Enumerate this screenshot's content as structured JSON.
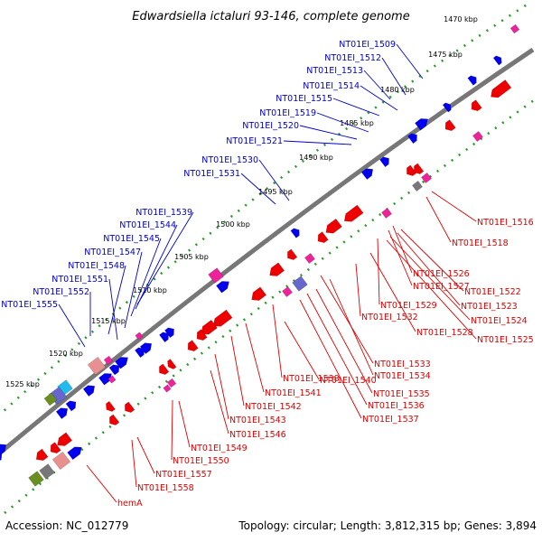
{
  "title": "Edwardsiella ictaluri 93-146, complete genome",
  "footer": {
    "accession": "Accession: NC_012779",
    "summary": "Topology: circular; Length: 3,812,315 bp; Genes: 3,894"
  },
  "colors": {
    "backbone": "#777777",
    "tick": "#2a9a2a",
    "forward": "#0000ee",
    "reverse": "#ee0000",
    "forward_label": "#0000cc",
    "reverse_label": "#dd0000",
    "rna": "#ee2299",
    "misc_a": "#777777",
    "misc_b": "#6666cc",
    "misc_c": "#e89090",
    "misc_d": "#6b8e23",
    "misc_e": "#22bbee"
  },
  "ticks": [
    {
      "label": "1470 kbp"
    },
    {
      "label": "1475 kbp"
    },
    {
      "label": "1480 kbp"
    },
    {
      "label": "1485 kbp"
    },
    {
      "label": "1490 kbp"
    },
    {
      "label": "1495 kbp"
    },
    {
      "label": "1500 kbp"
    },
    {
      "label": "1505 kbp"
    },
    {
      "label": "1510 kbp"
    },
    {
      "label": "1515 kbp"
    },
    {
      "label": "1520 kbp"
    },
    {
      "label": "1525 kbp"
    }
  ],
  "forward_genes": [
    {
      "label": "NT01EI_1509"
    },
    {
      "label": "NT01EI_1512"
    },
    {
      "label": "NT01EI_1513"
    },
    {
      "label": "NT01EI_1514"
    },
    {
      "label": "NT01EI_1515"
    },
    {
      "label": "NT01EI_1519"
    },
    {
      "label": "NT01EI_1520"
    },
    {
      "label": "NT01EI_1521"
    },
    {
      "label": "NT01EI_1530"
    },
    {
      "label": "NT01EI_1531"
    },
    {
      "label": "NT01EI_1539"
    },
    {
      "label": "NT01EI_1544"
    },
    {
      "label": "NT01EI_1545"
    },
    {
      "label": "NT01EI_1547"
    },
    {
      "label": "NT01EI_1548"
    },
    {
      "label": "NT01EI_1551"
    },
    {
      "label": "NT01EI_1552"
    },
    {
      "label": "NT01EI_1555"
    }
  ],
  "reverse_genes": [
    {
      "label": "NT01EI_1516"
    },
    {
      "label": "NT01EI_1518"
    },
    {
      "label": "NT01EI_1526"
    },
    {
      "label": "NT01EI_1527"
    },
    {
      "label": "NT01EI_1522"
    },
    {
      "label": "NT01EI_1529"
    },
    {
      "label": "NT01EI_1523"
    },
    {
      "label": "NT01EI_1532"
    },
    {
      "label": "NT01EI_1524"
    },
    {
      "label": "NT01EI_1528"
    },
    {
      "label": "NT01EI_1525"
    },
    {
      "label": "NT01EI_1533"
    },
    {
      "label": "NT01EI_1538"
    },
    {
      "label": "NT01EI_1534"
    },
    {
      "label": "NT01EI_1540"
    },
    {
      "label": "NT01EI_1541"
    },
    {
      "label": "NT01EI_1535"
    },
    {
      "label": "NT01EI_1536"
    },
    {
      "label": "NT01EI_1542"
    },
    {
      "label": "NT01EI_1537"
    },
    {
      "label": "NT01EI_1543"
    },
    {
      "label": "NT01EI_1546"
    },
    {
      "label": "NT01EI_1549"
    },
    {
      "label": "NT01EI_1550"
    },
    {
      "label": "NT01EI_1557"
    },
    {
      "label": "NT01EI_1558"
    },
    {
      "label": "hemA"
    }
  ]
}
